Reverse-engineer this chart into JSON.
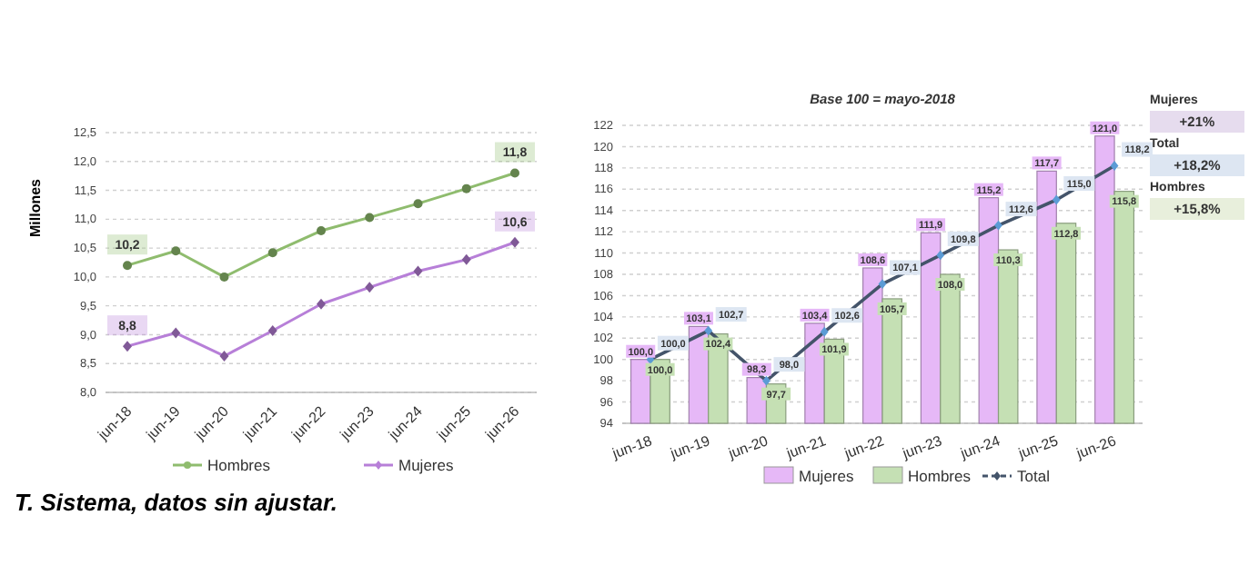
{
  "chart_data": [
    {
      "type": "line",
      "ylabel": "Millones",
      "categories": [
        "jun-18",
        "jun-19",
        "jun-20",
        "jun-21",
        "jun-22",
        "jun-23",
        "jun-24",
        "jun-25",
        "jun-26"
      ],
      "series": [
        {
          "name": "Hombres",
          "color": "#8fbc6e",
          "marker": "circle",
          "values": [
            10.2,
            10.45,
            10.0,
            10.42,
            10.8,
            11.03,
            11.27,
            11.53,
            11.8
          ],
          "value_labels": [
            "10,2",
            null,
            null,
            null,
            null,
            null,
            null,
            null,
            "11,8"
          ]
        },
        {
          "name": "Mujeres",
          "color": "#b77fd8",
          "marker": "diamond",
          "values": [
            8.8,
            9.03,
            8.63,
            9.07,
            9.53,
            9.82,
            10.1,
            10.3,
            10.6
          ],
          "value_labels": [
            "8,8",
            null,
            null,
            null,
            null,
            null,
            null,
            null,
            "10,6"
          ]
        }
      ],
      "ylim": [
        8,
        12.5
      ],
      "yticks": [
        {
          "value": 8,
          "label": "8,0"
        },
        {
          "value": 8.5,
          "label": "8,5"
        },
        {
          "value": 9,
          "label": "9,0"
        },
        {
          "value": 9.5,
          "label": "9,5"
        },
        {
          "value": 10,
          "label": "10,0"
        },
        {
          "value": 10.5,
          "label": "10,5"
        },
        {
          "value": 11,
          "label": "11,0"
        },
        {
          "value": 11.5,
          "label": "11,5"
        },
        {
          "value": 12,
          "label": "12,0"
        },
        {
          "value": 12.5,
          "label": "12,5"
        }
      ],
      "grid": "y",
      "legend": "bottom",
      "annotations": [
        "T. Sistema, datos sin ajustar."
      ]
    },
    {
      "type": "bar",
      "subtitle": "Base 100 = mayo-2018",
      "categories": [
        "jun-18",
        "jun-19",
        "jun-20",
        "jun-21",
        "jun-22",
        "jun-23",
        "jun-24",
        "jun-25",
        "jun-26"
      ],
      "series": [
        {
          "name": "Mujeres",
          "color": "#e6b8f7",
          "values": [
            100.0,
            103.1,
            98.3,
            103.4,
            108.6,
            111.9,
            115.2,
            117.7,
            121.0
          ],
          "value_labels": [
            "100,0",
            "103,1",
            "98,3",
            "103,4",
            "108,6",
            "111,9",
            "115,2",
            "117,7",
            "121,0"
          ]
        },
        {
          "name": "Hombres",
          "color": "#c5e0b4",
          "values": [
            100.0,
            102.4,
            97.7,
            101.9,
            105.7,
            108.0,
            110.3,
            112.8,
            115.8
          ],
          "value_labels": [
            "100,0",
            "102,4",
            "97,7",
            "101,9",
            "105,7",
            "108,0",
            "110,3",
            "112,8",
            "115,8"
          ]
        },
        {
          "name": "Total",
          "type": "line",
          "color": "#44546a",
          "marker": "diamond",
          "values": [
            100.0,
            102.7,
            98.0,
            102.6,
            107.1,
            109.8,
            112.6,
            115.0,
            118.2
          ],
          "value_labels": [
            "100,0",
            "102,7",
            "98,0",
            "102,6",
            "107,1",
            "109,8",
            "112,6",
            "115,0",
            "118,2"
          ]
        }
      ],
      "ylim": [
        94,
        122
      ],
      "yticks": [
        94,
        96,
        98,
        100,
        102,
        104,
        106,
        108,
        110,
        112,
        114,
        116,
        118,
        120,
        122
      ],
      "grid": "y",
      "legend": "bottom",
      "annotations": [
        "Mujeres",
        "+21%",
        "Total",
        "+18,2%",
        "Hombres",
        "+15,8%"
      ]
    }
  ]
}
